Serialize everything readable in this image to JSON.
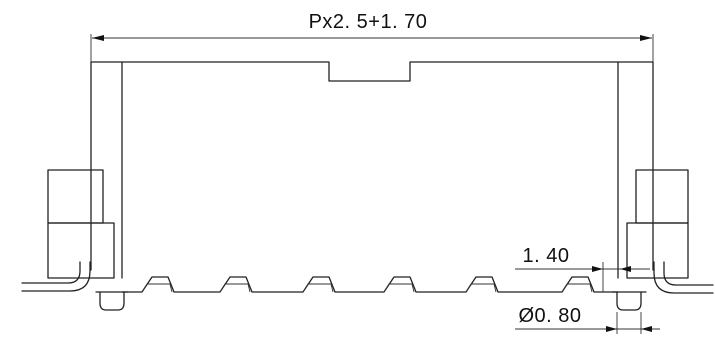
{
  "dimensions": {
    "overall_width": "Px2. 5+1. 70",
    "pin_pitch_offset": "1. 40",
    "pin_diameter": "Ø0. 80"
  },
  "colors": {
    "line": "#222222",
    "background": "#ffffff"
  }
}
